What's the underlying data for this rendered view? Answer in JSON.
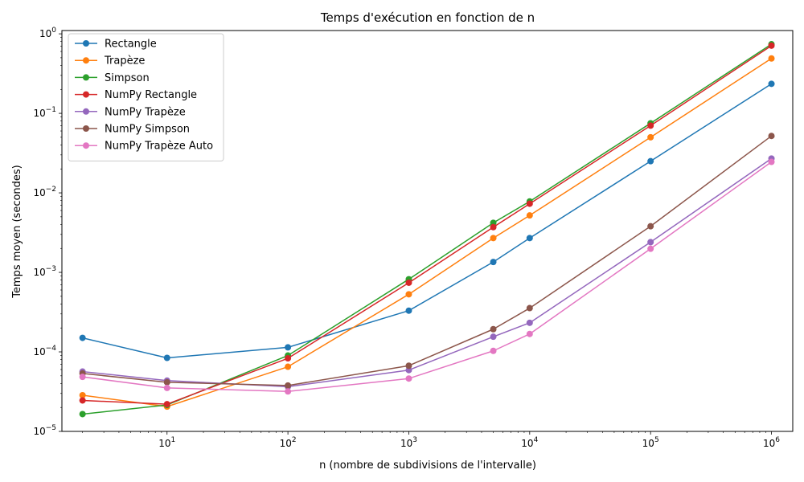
{
  "chart_data": {
    "type": "line",
    "title": "Temps d'exécution en fonction de n",
    "xlabel": "n (nombre de subdivisions de l'intervalle)",
    "ylabel": "Temps moyen (secondes)",
    "xscale": "log",
    "yscale": "log",
    "xlim": [
      1.35,
      1500000
    ],
    "ylim": [
      1e-05,
      1.1
    ],
    "x_ticks": [
      {
        "value": 10,
        "mant": "10",
        "exp": "1"
      },
      {
        "value": 100,
        "mant": "10",
        "exp": "2"
      },
      {
        "value": 1000,
        "mant": "10",
        "exp": "3"
      },
      {
        "value": 10000,
        "mant": "10",
        "exp": "4"
      },
      {
        "value": 100000,
        "mant": "10",
        "exp": "5"
      },
      {
        "value": 1000000,
        "mant": "10",
        "exp": "6"
      }
    ],
    "y_ticks": [
      {
        "value": 1e-05,
        "mant": "10",
        "exp": "−5"
      },
      {
        "value": 0.0001,
        "mant": "10",
        "exp": "−4"
      },
      {
        "value": 0.001,
        "mant": "10",
        "exp": "−3"
      },
      {
        "value": 0.01,
        "mant": "10",
        "exp": "−2"
      },
      {
        "value": 0.1,
        "mant": "10",
        "exp": "−1"
      },
      {
        "value": 1,
        "mant": "10",
        "exp": "0"
      }
    ],
    "grid": false,
    "legend_position": "top-left",
    "x": [
      2,
      10,
      100,
      1000,
      5000,
      10000,
      100000,
      1000000
    ],
    "series": [
      {
        "name": "Rectangle",
        "color": "#1f77b4",
        "values": [
          0.00015,
          8.4e-05,
          0.000114,
          0.00033,
          0.00135,
          0.0027,
          0.025,
          0.235
        ]
      },
      {
        "name": "Trapèze",
        "color": "#ff7f0e",
        "values": [
          2.85e-05,
          2.05e-05,
          6.5e-05,
          0.00053,
          0.0027,
          0.0052,
          0.05,
          0.49
        ]
      },
      {
        "name": "Simpson",
        "color": "#2ca02c",
        "values": [
          1.65e-05,
          2.15e-05,
          9e-05,
          0.00082,
          0.0042,
          0.0078,
          0.075,
          0.74
        ]
      },
      {
        "name": "NumPy Rectangle",
        "color": "#d62728",
        "values": [
          2.45e-05,
          2.2e-05,
          8.3e-05,
          0.00074,
          0.0037,
          0.0073,
          0.07,
          0.71
        ]
      },
      {
        "name": "NumPy Trapèze",
        "color": "#9467bd",
        "values": [
          5.65e-05,
          4.35e-05,
          3.65e-05,
          5.9e-05,
          0.000155,
          0.000232,
          0.0024,
          0.027
        ]
      },
      {
        "name": "NumPy Simpson",
        "color": "#8c564b",
        "values": [
          5.35e-05,
          4.15e-05,
          3.78e-05,
          6.7e-05,
          0.000193,
          0.000355,
          0.0038,
          0.052
        ]
      },
      {
        "name": "NumPy Trapèze Auto",
        "color": "#e377c2",
        "values": [
          4.85e-05,
          3.52e-05,
          3.18e-05,
          4.62e-05,
          0.000103,
          0.000168,
          0.00198,
          0.0245
        ]
      }
    ]
  }
}
